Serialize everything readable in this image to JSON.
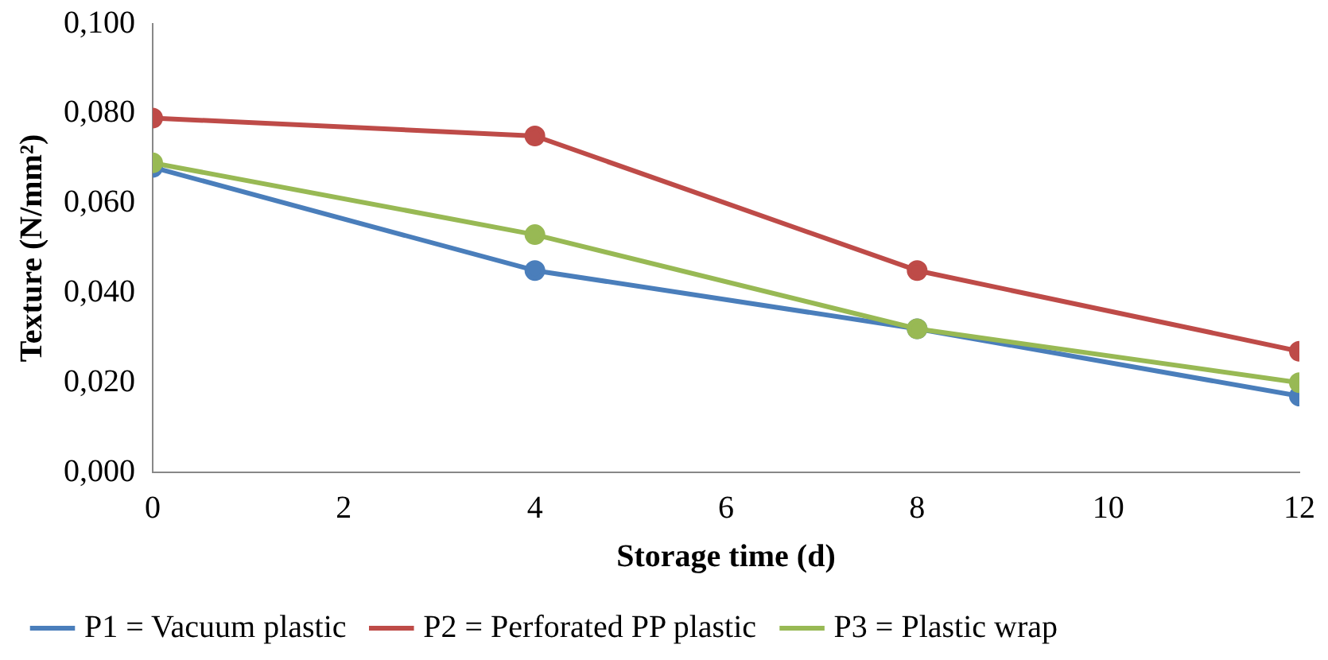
{
  "chart_data": {
    "type": "line",
    "xlabel": "Storage time (d)",
    "ylabel": "Texture (N/mm²)",
    "x": [
      0,
      4,
      8,
      12
    ],
    "series": [
      {
        "name": "P1 = Vacuum plastic",
        "color": "#4a7ebb",
        "values": [
          0.068,
          0.045,
          0.032,
          0.017
        ]
      },
      {
        "name": "P2 = Perforated PP plastic",
        "color": "#be4b48",
        "values": [
          0.079,
          0.075,
          0.045,
          0.027
        ]
      },
      {
        "name": "P3 = Plastic wrap",
        "color": "#98b954",
        "values": [
          0.069,
          0.053,
          0.032,
          0.02
        ]
      }
    ],
    "xlim": [
      0,
      12
    ],
    "xticks": [
      0,
      2,
      4,
      6,
      8,
      10,
      12
    ],
    "ylim": [
      0,
      0.1
    ],
    "yticks": [
      {
        "value": 0,
        "label": "0,000"
      },
      {
        "value": 0.02,
        "label": "0,020"
      },
      {
        "value": 0.04,
        "label": "0,040"
      },
      {
        "value": 0.06,
        "label": "0,060"
      },
      {
        "value": 0.08,
        "label": "0,080"
      },
      {
        "value": 0.1,
        "label": "0,100"
      }
    ],
    "grid": false,
    "legend": "bottom",
    "marker": "circle",
    "line_style": "solid"
  }
}
